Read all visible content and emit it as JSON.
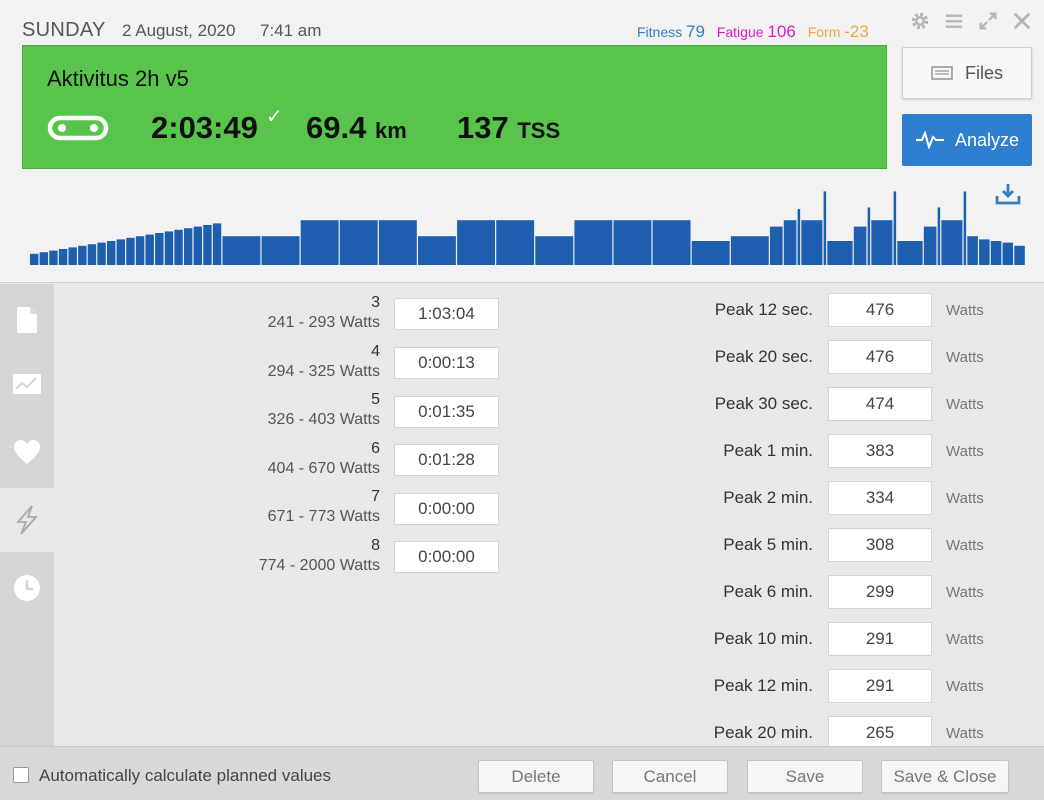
{
  "header": {
    "day": "SUNDAY",
    "date": "2 August, 2020",
    "time": "7:41 am",
    "fitness_label": "Fitness",
    "fitness_value": "79",
    "fatigue_label": "Fatigue",
    "fatigue_value": "106",
    "form_label": "Form",
    "form_value": "-23",
    "colors": {
      "fitness": "#2f7fc1",
      "fatigue": "#e21bc9",
      "form": "#f2a83a"
    }
  },
  "workout": {
    "title": "Aktivitus 2h v5",
    "duration": "2:03:49",
    "distance_value": "69.4",
    "distance_unit": "km",
    "tss_value": "137",
    "tss_unit": "TSS",
    "card_color": "#58c44c"
  },
  "buttons": {
    "files": "Files",
    "analyze": "Analyze"
  },
  "structure_chart": {
    "bar_color": "#1f5faf",
    "intervals": [
      {
        "w": 2,
        "h": 0.14
      },
      {
        "w": 2,
        "h": 0.16
      },
      {
        "w": 2,
        "h": 0.18
      },
      {
        "w": 2,
        "h": 0.2
      },
      {
        "w": 2,
        "h": 0.22
      },
      {
        "w": 2,
        "h": 0.24
      },
      {
        "w": 2,
        "h": 0.26
      },
      {
        "w": 2,
        "h": 0.28
      },
      {
        "w": 2,
        "h": 0.3
      },
      {
        "w": 2,
        "h": 0.32
      },
      {
        "w": 2,
        "h": 0.34
      },
      {
        "w": 2,
        "h": 0.36
      },
      {
        "w": 2,
        "h": 0.38
      },
      {
        "w": 2,
        "h": 0.4
      },
      {
        "w": 2,
        "h": 0.42
      },
      {
        "w": 2,
        "h": 0.44
      },
      {
        "w": 2,
        "h": 0.46
      },
      {
        "w": 2,
        "h": 0.48
      },
      {
        "w": 2,
        "h": 0.5
      },
      {
        "w": 2,
        "h": 0.52
      },
      {
        "w": 9,
        "h": 0.36
      },
      {
        "w": 9,
        "h": 0.36
      },
      {
        "w": 9,
        "h": 0.56
      },
      {
        "w": 9,
        "h": 0.56
      },
      {
        "w": 9,
        "h": 0.56
      },
      {
        "w": 9,
        "h": 0.36
      },
      {
        "w": 9,
        "h": 0.56
      },
      {
        "w": 9,
        "h": 0.56
      },
      {
        "w": 9,
        "h": 0.36
      },
      {
        "w": 9,
        "h": 0.56
      },
      {
        "w": 9,
        "h": 0.56
      },
      {
        "w": 9,
        "h": 0.56
      },
      {
        "w": 9,
        "h": 0.3
      },
      {
        "w": 9,
        "h": 0.36
      },
      {
        "w": 3,
        "h": 0.48
      },
      {
        "w": 3,
        "h": 0.56
      },
      {
        "w": 0.6,
        "h": 0.7
      },
      {
        "w": 5,
        "h": 0.56
      },
      {
        "w": 0.6,
        "h": 0.92
      },
      {
        "w": 6,
        "h": 0.3
      },
      {
        "w": 3,
        "h": 0.48
      },
      {
        "w": 0.6,
        "h": 0.72
      },
      {
        "w": 5,
        "h": 0.56
      },
      {
        "w": 0.6,
        "h": 0.92
      },
      {
        "w": 6,
        "h": 0.3
      },
      {
        "w": 3,
        "h": 0.48
      },
      {
        "w": 0.6,
        "h": 0.72
      },
      {
        "w": 5,
        "h": 0.56
      },
      {
        "w": 0.6,
        "h": 0.92
      },
      {
        "w": 2.5,
        "h": 0.36
      },
      {
        "w": 2.5,
        "h": 0.32
      },
      {
        "w": 2.5,
        "h": 0.3
      },
      {
        "w": 2.5,
        "h": 0.28
      },
      {
        "w": 2.5,
        "h": 0.24
      }
    ]
  },
  "zones": [
    {
      "zone": "3",
      "range": "241 - 293 Watts",
      "time": "1:03:04"
    },
    {
      "zone": "4",
      "range": "294 - 325 Watts",
      "time": "0:00:13"
    },
    {
      "zone": "5",
      "range": "326 - 403 Watts",
      "time": "0:01:35"
    },
    {
      "zone": "6",
      "range": "404 - 670 Watts",
      "time": "0:01:28"
    },
    {
      "zone": "7",
      "range": "671 - 773 Watts",
      "time": "0:00:00"
    },
    {
      "zone": "8",
      "range": "774 - 2000 Watts",
      "time": "0:00:00"
    }
  ],
  "peaks": [
    {
      "label": "Peak 12 sec.",
      "value": "476",
      "unit": "Watts"
    },
    {
      "label": "Peak 20 sec.",
      "value": "476",
      "unit": "Watts"
    },
    {
      "label": "Peak 30 sec.",
      "value": "474",
      "unit": "Watts"
    },
    {
      "label": "Peak 1 min.",
      "value": "383",
      "unit": "Watts"
    },
    {
      "label": "Peak 2 min.",
      "value": "334",
      "unit": "Watts"
    },
    {
      "label": "Peak 5 min.",
      "value": "308",
      "unit": "Watts"
    },
    {
      "label": "Peak 6 min.",
      "value": "299",
      "unit": "Watts"
    },
    {
      "label": "Peak 10 min.",
      "value": "291",
      "unit": "Watts"
    },
    {
      "label": "Peak 12 min.",
      "value": "291",
      "unit": "Watts"
    },
    {
      "label": "Peak 20 min.",
      "value": "265",
      "unit": "Watts"
    }
  ],
  "sidebar": {
    "icons": [
      "document-icon",
      "chart-icon",
      "heart-icon",
      "power-icon",
      "clock-icon"
    ],
    "active": "power-icon"
  },
  "footer": {
    "auto_calc_label": "Automatically calculate planned values",
    "auto_calc_checked": false,
    "delete": "Delete",
    "cancel": "Cancel",
    "save": "Save",
    "save_close": "Save & Close"
  }
}
